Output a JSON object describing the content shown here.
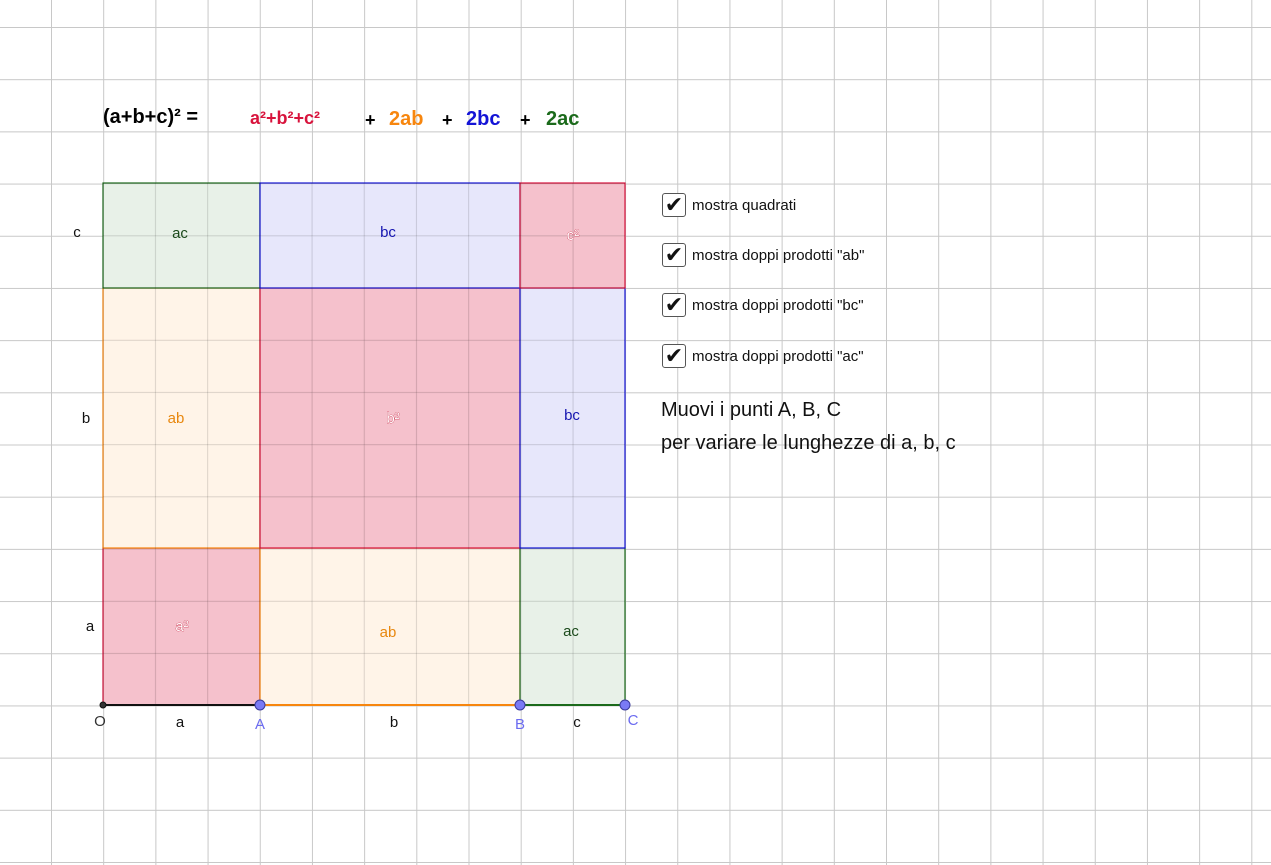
{
  "formula": {
    "lhs": "(a+b+c)² =",
    "squares": "a²+b²+c²",
    "plus": "+",
    "term_ab": "2ab",
    "term_bc": "2bc",
    "term_ac": "2ac"
  },
  "regions": [
    {
      "id": "a-squared",
      "label": "a²",
      "kind": "square"
    },
    {
      "id": "ab-bottom",
      "label": "ab",
      "kind": "ab"
    },
    {
      "id": "ac-bottom",
      "label": "ac",
      "kind": "ac"
    },
    {
      "id": "ab-left",
      "label": "ab",
      "kind": "ab"
    },
    {
      "id": "b-squared",
      "label": "b²",
      "kind": "square"
    },
    {
      "id": "bc-right",
      "label": "bc",
      "kind": "bc"
    },
    {
      "id": "ac-top",
      "label": "ac",
      "kind": "ac"
    },
    {
      "id": "bc-top",
      "label": "bc",
      "kind": "bc"
    },
    {
      "id": "c-squared",
      "label": "c²",
      "kind": "square"
    }
  ],
  "side_labels": {
    "left": [
      "a",
      "b",
      "c"
    ],
    "bottom": [
      "a",
      "b",
      "c"
    ]
  },
  "points": [
    {
      "name": "O",
      "movable": false
    },
    {
      "name": "A",
      "movable": true
    },
    {
      "name": "B",
      "movable": true
    },
    {
      "name": "C",
      "movable": true
    }
  ],
  "colors": {
    "square_fill": "#f3b6c3",
    "square_stroke": "#d8133c",
    "ab_fill": "#fff3e5",
    "ab_stroke": "#f7860e",
    "ab_text": "#e8870e",
    "bc_fill": "#e4e4fb",
    "bc_stroke": "#1414d6",
    "bc_text": "#1414b0",
    "ac_fill": "#e6efe6",
    "ac_stroke": "#1b6a1b",
    "ac_text": "#1b4a1b",
    "point_fill": "#7a7af5",
    "point_label": "#6b6bf0"
  },
  "checkboxes": [
    {
      "label": "mostra quadrati",
      "checked": true
    },
    {
      "label": "mostra doppi prodotti \"ab\"",
      "checked": true
    },
    {
      "label": "mostra doppi prodotti \"bc\"",
      "checked": true
    },
    {
      "label": "mostra doppi prodotti \"ac\"",
      "checked": true
    }
  ],
  "instructions": {
    "line1": "Muovi i punti A, B, C",
    "line2": "per variare le lunghezze di a, b, c"
  }
}
